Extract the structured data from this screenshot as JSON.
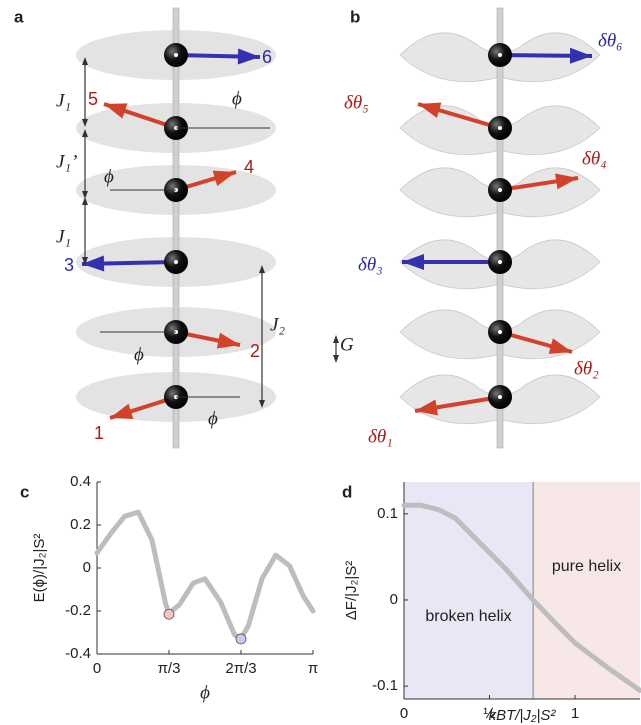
{
  "panel_a": {
    "label": "a",
    "spin_labels": [
      "1",
      "2",
      "3",
      "4",
      "5",
      "6"
    ],
    "couplings": [
      "J₁",
      "J₁’",
      "J₁",
      "J₂"
    ],
    "angle_labels": [
      "ϕ",
      "ϕ",
      "ϕ",
      "ϕ"
    ]
  },
  "panel_b": {
    "label": "b",
    "spin_labels": [
      "δθ₁",
      "δθ₂",
      "δθ₃",
      "δθ₄",
      "δθ₅",
      "δθ₆"
    ],
    "gap_label": "G"
  },
  "chart_data": [
    {
      "type": "line",
      "panel": "c",
      "xlabel": "ϕ",
      "ylabel": "E(ϕ)/|J₂|S²",
      "xlim": [
        0,
        3.1416
      ],
      "ylim": [
        -0.4,
        0.4
      ],
      "xticks": [
        0,
        {
          "value": 1.0472,
          "label": "π/3"
        },
        {
          "value": 2.0944,
          "label": "2π/3"
        },
        {
          "value": 3.1416,
          "label": "π"
        }
      ],
      "yticks": [
        -0.4,
        -0.2,
        0,
        0.2,
        0.4
      ],
      "series": [
        {
          "color": "#bdbdbd",
          "x": [
            0,
            0.2,
            0.4,
            0.6,
            0.8,
            1.0,
            1.05,
            1.2,
            1.4,
            1.57,
            1.8,
            2.0,
            2.09,
            2.2,
            2.4,
            2.6,
            2.8,
            3.0,
            3.1416
          ],
          "values": [
            0.07,
            0.16,
            0.24,
            0.26,
            0.13,
            -0.17,
            -0.21,
            -0.17,
            -0.07,
            -0.05,
            -0.16,
            -0.31,
            -0.33,
            -0.27,
            -0.05,
            0.06,
            0.01,
            -0.13,
            -0.2
          ]
        }
      ],
      "markers": [
        {
          "x": 1.0472,
          "y": -0.215,
          "color": "#f6c3bd"
        },
        {
          "x": 2.0944,
          "y": -0.33,
          "color": "#c9c9f2"
        }
      ]
    },
    {
      "type": "line",
      "panel": "d",
      "xlabel": "kBT/|J₂|S²",
      "ylabel": "ΔF/|J₂|S²",
      "xlim": [
        0,
        1.38
      ],
      "ylim": [
        -0.115,
        0.137
      ],
      "xticks": [
        0,
        {
          "value": 0.5,
          "label": "½"
        },
        1
      ],
      "yticks": [
        -0.1,
        0,
        0.1
      ],
      "regions": [
        {
          "label": "broken helix",
          "range": [
            0,
            0.755
          ],
          "color": "#e7e7f6"
        },
        {
          "label": "pure helix",
          "range": [
            0.755,
            1.38
          ],
          "color": "#f8e7e7"
        }
      ],
      "series": [
        {
          "color": "#bdbdbd",
          "x": [
            0,
            0.1,
            0.2,
            0.3,
            0.4,
            0.5,
            0.6,
            0.755,
            0.9,
            1.0,
            1.1,
            1.2,
            1.38
          ],
          "values": [
            0.11,
            0.11,
            0.105,
            0.095,
            0.075,
            0.055,
            0.035,
            0,
            -0.03,
            -0.05,
            -0.065,
            -0.08,
            -0.105
          ]
        }
      ]
    }
  ]
}
